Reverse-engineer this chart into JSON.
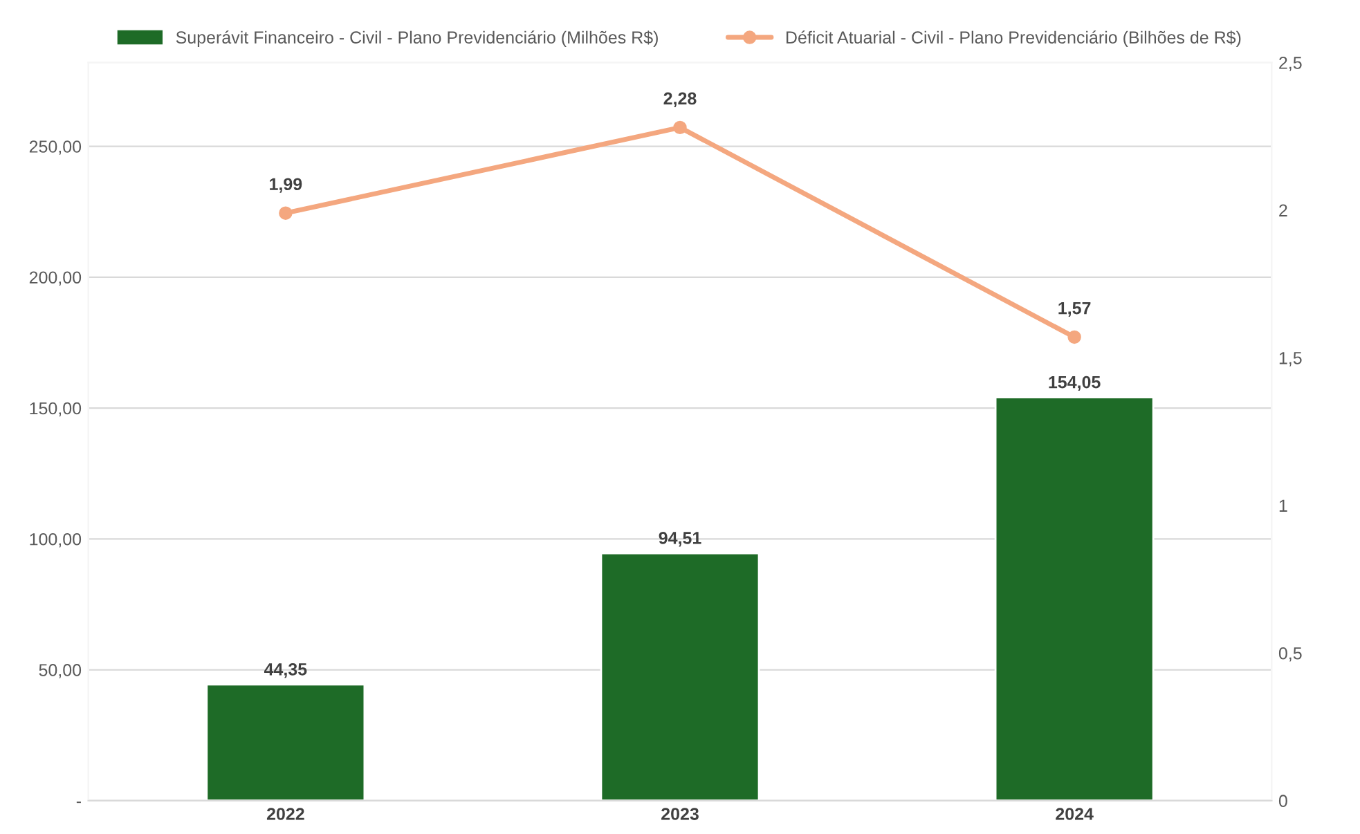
{
  "chart_data": {
    "type": "bar",
    "categories": [
      "2022",
      "2023",
      "2024"
    ],
    "series": [
      {
        "name": "Superávit Financeiro - Civil - Plano Previdenciário (Milhões R$)",
        "color": "#1e6b27",
        "values": [
          44.35,
          94.51,
          154.05
        ],
        "value_labels": [
          "44,35",
          "94,51",
          "154,05"
        ]
      },
      {
        "name": "Déficit Atuarial - Civil - Plano Previdenciário (Bilhões de R$)",
        "type": "line",
        "axis": "y2",
        "color": "#f4a77f",
        "marker": "circle",
        "values": [
          1.99,
          2.28,
          1.57
        ],
        "value_labels": [
          "1,99",
          "2,28",
          "1,57"
        ]
      }
    ],
    "ylim": [
      0,
      282
    ],
    "yticks": [
      {
        "value": 0,
        "label": "-"
      },
      {
        "value": 50,
        "label": "50,00"
      },
      {
        "value": 100,
        "label": "100,00"
      },
      {
        "value": 150,
        "label": "150,00"
      },
      {
        "value": 200,
        "label": "200,00"
      },
      {
        "value": 250,
        "label": "250,00"
      }
    ],
    "y2lim": [
      0,
      2.5
    ],
    "y2ticks": [
      0,
      {
        "value": 0.5,
        "label": "0,5"
      },
      1,
      {
        "value": 1.5,
        "label": "1,5"
      },
      2,
      {
        "value": 2.5,
        "label": "2,5"
      }
    ],
    "grid": "y",
    "legend": "top"
  }
}
